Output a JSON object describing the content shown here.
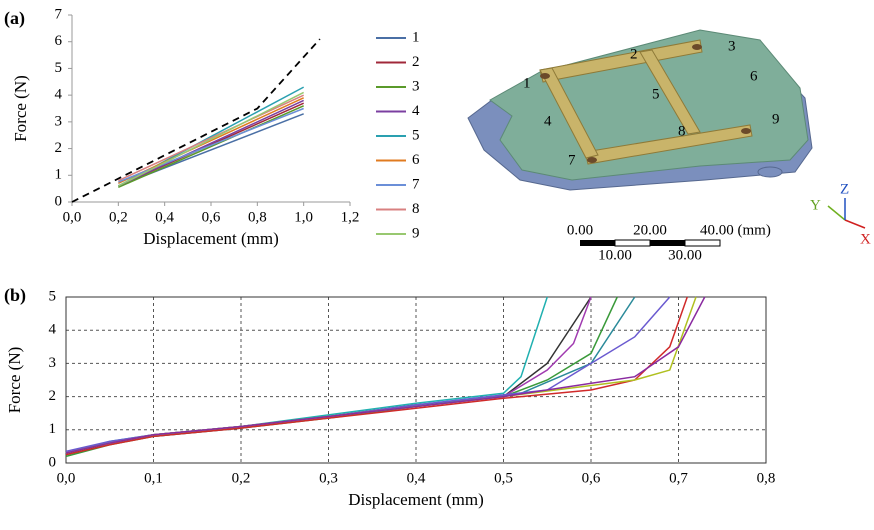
{
  "panel_labels": [
    "(a)",
    "(b)"
  ],
  "chart_data": [
    {
      "type": "line",
      "x_label": "Displacement (mm)",
      "y_label": "Force (N)",
      "x": [
        0.2,
        1.0
      ],
      "series": [
        {
          "name": "1",
          "color": "#4a6fa5",
          "values": [
            0.6,
            3.3
          ]
        },
        {
          "name": "2",
          "color": "#a0283a",
          "values": [
            0.6,
            3.7
          ]
        },
        {
          "name": "3",
          "color": "#5a9a2a",
          "values": [
            0.55,
            3.6
          ]
        },
        {
          "name": "4",
          "color": "#7b3fa0",
          "values": [
            0.6,
            3.8
          ]
        },
        {
          "name": "5",
          "color": "#2aa0b0",
          "values": [
            0.6,
            4.3
          ]
        },
        {
          "name": "6",
          "color": "#e07b20",
          "values": [
            0.7,
            3.9
          ]
        },
        {
          "name": "7",
          "color": "#6b8fd8",
          "values": [
            0.75,
            3.5
          ]
        },
        {
          "name": "8",
          "color": "#d88080",
          "values": [
            0.8,
            4.0
          ]
        },
        {
          "name": "9",
          "color": "#98c870",
          "values": [
            0.6,
            4.1
          ]
        }
      ],
      "dashed_line": {
        "x": [
          0,
          0.8,
          1.07
        ],
        "values": [
          0,
          3.5,
          6.1
        ],
        "color": "#000000"
      },
      "xlim": [
        0,
        1.2
      ],
      "xticks": [
        {
          "value": 0,
          "label": "0,0"
        },
        {
          "value": 0.2,
          "label": "0,2"
        },
        {
          "value": 0.4,
          "label": "0,4"
        },
        {
          "value": 0.6,
          "label": "0,6"
        },
        {
          "value": 0.8,
          "label": "0,8"
        },
        {
          "value": 1.0,
          "label": "1,0"
        },
        {
          "value": 1.2,
          "label": "1,2"
        }
      ],
      "ylim": [
        0,
        7
      ],
      "yticks": [
        0,
        1,
        2,
        3,
        4,
        5,
        6,
        7
      ],
      "grid": false,
      "legend": "right"
    },
    {
      "type": "line",
      "x_label": "Displacement (mm)",
      "y_label": "Force (N)",
      "series": [
        {
          "color": "#20b0b0",
          "x": [
            0,
            0.05,
            0.1,
            0.2,
            0.3,
            0.4,
            0.5,
            0.52,
            0.55
          ],
          "values": [
            0.3,
            0.65,
            0.85,
            1.1,
            1.45,
            1.8,
            2.1,
            2.6,
            5
          ]
        },
        {
          "color": "#333333",
          "x": [
            0,
            0.05,
            0.1,
            0.2,
            0.3,
            0.4,
            0.5,
            0.55,
            0.6
          ],
          "values": [
            0.25,
            0.6,
            0.85,
            1.1,
            1.4,
            1.75,
            2.0,
            3.0,
            5
          ]
        },
        {
          "color": "#a03ab0",
          "x": [
            0,
            0.05,
            0.1,
            0.2,
            0.3,
            0.4,
            0.5,
            0.55,
            0.58,
            0.6
          ],
          "values": [
            0.3,
            0.6,
            0.8,
            1.05,
            1.4,
            1.7,
            2.0,
            2.8,
            3.6,
            5
          ]
        },
        {
          "color": "#3a9a3a",
          "x": [
            0,
            0.05,
            0.1,
            0.2,
            0.3,
            0.4,
            0.5,
            0.55,
            0.6,
            0.63
          ],
          "values": [
            0.2,
            0.55,
            0.8,
            1.05,
            1.35,
            1.7,
            2.0,
            2.5,
            3.3,
            5
          ]
        },
        {
          "color": "#2a8a9a",
          "x": [
            0,
            0.05,
            0.1,
            0.2,
            0.3,
            0.4,
            0.52,
            0.6,
            0.65
          ],
          "values": [
            0.3,
            0.6,
            0.85,
            1.1,
            1.4,
            1.7,
            2.1,
            3.0,
            5
          ]
        },
        {
          "color": "#6a5ad0",
          "x": [
            0,
            0.05,
            0.1,
            0.2,
            0.3,
            0.4,
            0.55,
            0.65,
            0.69
          ],
          "values": [
            0.35,
            0.65,
            0.85,
            1.1,
            1.4,
            1.75,
            2.2,
            3.8,
            5
          ]
        },
        {
          "color": "#d02a2a",
          "x": [
            0,
            0.05,
            0.1,
            0.2,
            0.3,
            0.4,
            0.5,
            0.6,
            0.65,
            0.69,
            0.71
          ],
          "values": [
            0.25,
            0.55,
            0.8,
            1.05,
            1.35,
            1.65,
            1.95,
            2.2,
            2.5,
            3.5,
            5
          ]
        },
        {
          "color": "#b0c020",
          "x": [
            0,
            0.05,
            0.1,
            0.2,
            0.3,
            0.4,
            0.5,
            0.65,
            0.69,
            0.72
          ],
          "values": [
            0.3,
            0.6,
            0.85,
            1.1,
            1.4,
            1.7,
            2.0,
            2.5,
            2.8,
            5
          ]
        },
        {
          "color": "#8a2aa0",
          "x": [
            0,
            0.05,
            0.1,
            0.2,
            0.3,
            0.4,
            0.5,
            0.65,
            0.7,
            0.73
          ],
          "values": [
            0.3,
            0.6,
            0.85,
            1.1,
            1.4,
            1.7,
            2.0,
            2.6,
            3.5,
            5
          ]
        }
      ],
      "xlim": [
        0,
        0.8
      ],
      "xticks": [
        {
          "value": 0,
          "label": "0,0"
        },
        {
          "value": 0.1,
          "label": "0,1"
        },
        {
          "value": 0.2,
          "label": "0,2"
        },
        {
          "value": 0.3,
          "label": "0,3"
        },
        {
          "value": 0.4,
          "label": "0,4"
        },
        {
          "value": 0.5,
          "label": "0,5"
        },
        {
          "value": 0.6,
          "label": "0,6"
        },
        {
          "value": 0.7,
          "label": "0,7"
        },
        {
          "value": 0.8,
          "label": "0,8"
        }
      ],
      "ylim": [
        0,
        5
      ],
      "yticks": [
        0,
        1,
        2,
        3,
        4,
        5
      ],
      "grid": true
    }
  ],
  "device": {
    "labels": [
      "1",
      "2",
      "3",
      "4",
      "5",
      "6",
      "7",
      "8",
      "9"
    ],
    "axes": [
      "X",
      "Y",
      "Z"
    ]
  },
  "scale_bar": {
    "top": [
      "0.00",
      "20.00",
      "40.00 (mm)"
    ],
    "bottom": [
      "10.00",
      "30.00"
    ]
  }
}
